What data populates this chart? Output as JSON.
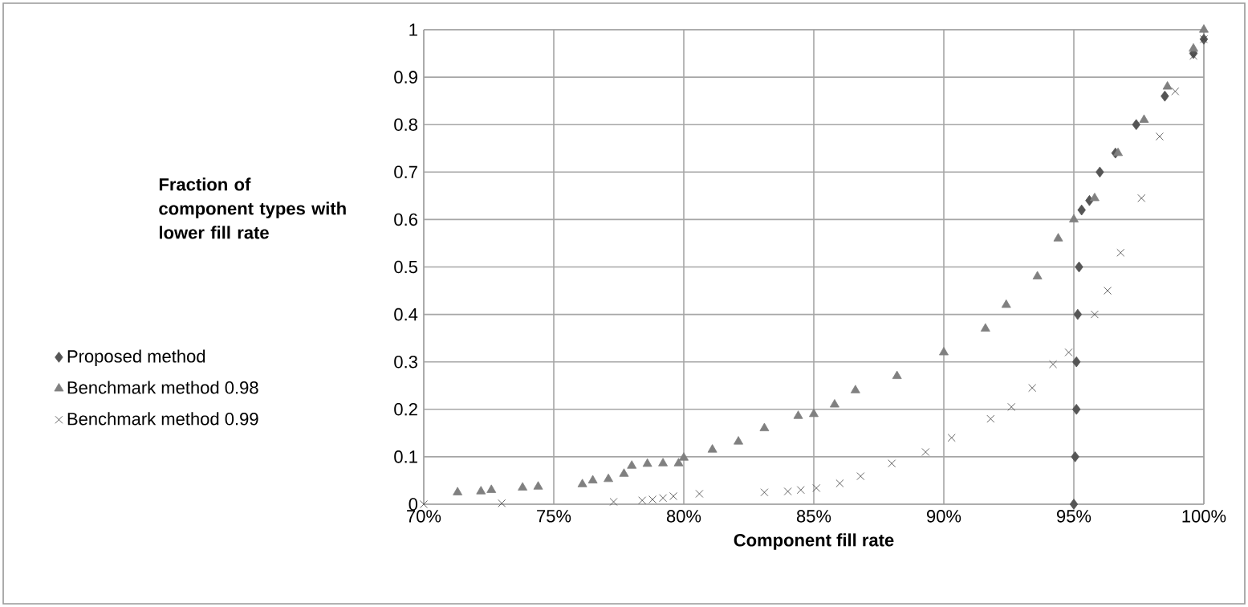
{
  "chart_data": {
    "type": "scatter",
    "xlabel": "Component fill rate",
    "ylabel": "Fraction of component types with lower fill rate",
    "xlim": [
      70,
      100
    ],
    "ylim": [
      0,
      1
    ],
    "xticks": [
      {
        "value": 70,
        "label": "70%"
      },
      {
        "value": 75,
        "label": "75%"
      },
      {
        "value": 80,
        "label": "80%"
      },
      {
        "value": 85,
        "label": "85%"
      },
      {
        "value": 90,
        "label": "90%"
      },
      {
        "value": 95,
        "label": "95%"
      },
      {
        "value": 100,
        "label": "100%"
      }
    ],
    "yticks": [
      0,
      0.1,
      0.2,
      0.3,
      0.4,
      0.5,
      0.6,
      0.7,
      0.8,
      0.9,
      1
    ],
    "grid": true,
    "legend": "left",
    "series": [
      {
        "name": "Proposed method",
        "color": "#555555",
        "marker": "diamond",
        "x": [
          95.0,
          95.05,
          95.1,
          95.1,
          95.15,
          95.2,
          95.3,
          95.6,
          96.0,
          96.6,
          97.4,
          98.5,
          99.6,
          100
        ],
        "values": [
          0.0,
          0.1,
          0.2,
          0.3,
          0.4,
          0.5,
          0.62,
          0.64,
          0.7,
          0.74,
          0.8,
          0.86,
          0.95,
          0.98
        ]
      },
      {
        "name": "Benchmark method 0.98",
        "color": "#808080",
        "marker": "triangle",
        "x": [
          71.3,
          72.2,
          72.6,
          73.8,
          74.4,
          76.1,
          76.5,
          77.1,
          77.7,
          78.0,
          78.6,
          79.2,
          79.8,
          80.0,
          81.1,
          82.1,
          83.1,
          84.4,
          85.0,
          85.8,
          86.6,
          88.2,
          90.0,
          91.6,
          92.4,
          93.6,
          94.4,
          95.0,
          95.8,
          96.7,
          97.7,
          98.6,
          99.6,
          100
        ],
        "values": [
          0.025,
          0.027,
          0.03,
          0.035,
          0.037,
          0.042,
          0.05,
          0.053,
          0.064,
          0.081,
          0.085,
          0.086,
          0.086,
          0.098,
          0.115,
          0.132,
          0.16,
          0.186,
          0.19,
          0.21,
          0.24,
          0.27,
          0.32,
          0.37,
          0.42,
          0.48,
          0.56,
          0.6,
          0.645,
          0.74,
          0.81,
          0.88,
          0.96,
          1.0
        ]
      },
      {
        "name": "Benchmark method 0.99",
        "color": "#404040",
        "marker": "cross",
        "x": [
          70.0,
          73.0,
          77.3,
          78.4,
          78.8,
          79.2,
          79.6,
          80.6,
          83.1,
          84.0,
          84.5,
          85.1,
          86.0,
          86.8,
          88.0,
          89.3,
          90.3,
          91.8,
          92.6,
          93.4,
          94.2,
          94.8,
          95.8,
          96.3,
          96.8,
          97.6,
          98.3,
          98.9,
          99.6,
          100
        ],
        "values": [
          0.0,
          0.002,
          0.005,
          0.008,
          0.01,
          0.013,
          0.017,
          0.022,
          0.025,
          0.027,
          0.03,
          0.034,
          0.044,
          0.059,
          0.086,
          0.11,
          0.14,
          0.18,
          0.205,
          0.245,
          0.295,
          0.32,
          0.4,
          0.45,
          0.53,
          0.645,
          0.775,
          0.87,
          0.945,
          0.98
        ]
      }
    ]
  }
}
